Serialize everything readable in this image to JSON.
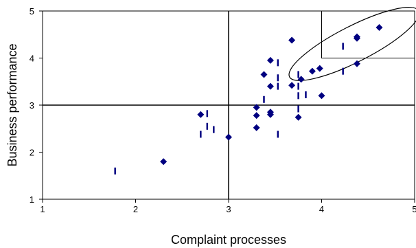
{
  "chart_data": {
    "type": "scatter",
    "title": "",
    "xlabel": "Complaint processes",
    "ylabel": "Business performance",
    "xlim": [
      1,
      5
    ],
    "ylim": [
      1,
      5
    ],
    "x_ticks": [
      1,
      2,
      3,
      4,
      5
    ],
    "y_ticks": [
      1,
      2,
      3,
      4,
      5
    ],
    "grid": false,
    "reference_lines": {
      "x": 3,
      "y": 3
    },
    "highlight_box": {
      "x": [
        4,
        5
      ],
      "y": [
        4,
        5
      ]
    },
    "highlight_ellipse": {
      "cx": 4.35,
      "cy": 4.3,
      "rx": 0.78,
      "ry": 0.38,
      "angle_deg": -27
    },
    "series": [
      {
        "marker": "diamond",
        "color": "#000080",
        "points": [
          [
            2.3,
            1.8
          ],
          [
            2.7,
            2.8
          ],
          [
            3.0,
            2.32
          ],
          [
            3.3,
            2.95
          ],
          [
            3.3,
            2.78
          ],
          [
            3.3,
            2.52
          ],
          [
            3.38,
            3.65
          ],
          [
            3.45,
            3.95
          ],
          [
            3.45,
            3.4
          ],
          [
            3.45,
            2.85
          ],
          [
            3.45,
            2.8
          ],
          [
            3.68,
            4.38
          ],
          [
            3.68,
            3.42
          ],
          [
            3.75,
            2.74
          ],
          [
            3.78,
            3.55
          ],
          [
            3.9,
            3.72
          ],
          [
            3.98,
            3.78
          ],
          [
            4.0,
            3.2
          ],
          [
            4.38,
            4.45
          ],
          [
            4.38,
            4.42
          ],
          [
            4.38,
            3.88
          ],
          [
            4.62,
            4.65
          ]
        ]
      },
      {
        "marker": "dash",
        "color": "#000080",
        "points": [
          [
            1.78,
            1.6
          ],
          [
            2.7,
            2.38
          ],
          [
            2.77,
            2.82
          ],
          [
            2.77,
            2.55
          ],
          [
            2.84,
            2.48
          ],
          [
            3.38,
            3.12
          ],
          [
            3.53,
            3.9
          ],
          [
            3.53,
            3.58
          ],
          [
            3.53,
            3.4
          ],
          [
            3.53,
            2.38
          ],
          [
            3.75,
            3.65
          ],
          [
            3.75,
            3.4
          ],
          [
            3.75,
            3.2
          ],
          [
            3.75,
            2.92
          ],
          [
            3.83,
            3.22
          ],
          [
            4.23,
            4.25
          ],
          [
            4.23,
            3.72
          ]
        ]
      }
    ]
  }
}
